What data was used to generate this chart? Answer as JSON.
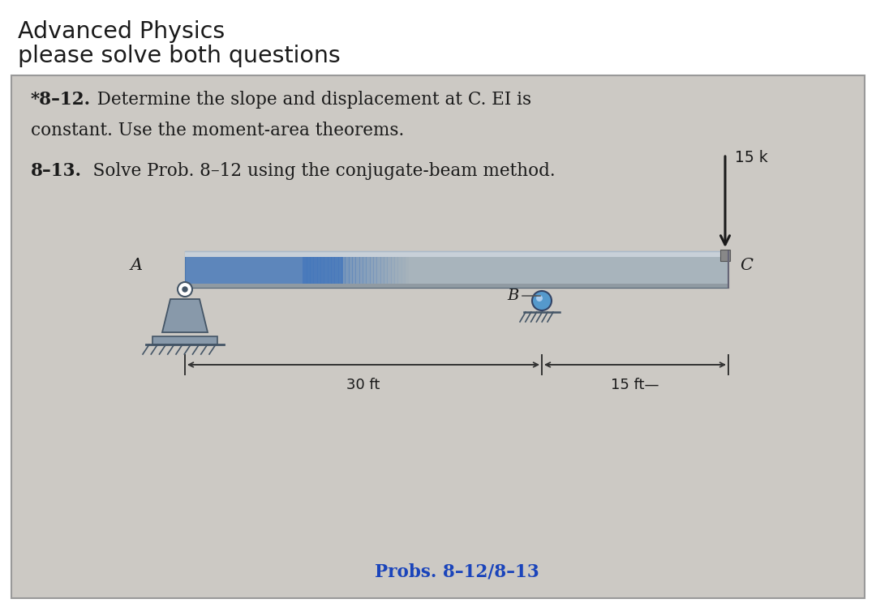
{
  "title_line1": "Advanced Physics",
  "title_line2": "please solve both questions",
  "prob_812_bold": "*8–12.",
  "prob_812_rest1": "  Determine the slope and displacement at C. EI is",
  "prob_812_rest2": "constant. Use the moment-area theorems.",
  "prob_813_bold": "8–13.",
  "prob_813_rest": "   Solve Prob. 8–12 using the conjugate-beam method.",
  "load_label": "15 k",
  "label_A": "A",
  "label_B": "B",
  "label_C": "C",
  "dim_30ft": "30 ft",
  "dim_15ft": "15 ft—",
  "prob_caption": "Probs. 8–12/8–13",
  "bg_color": "#ffffff",
  "box_bg": "#ccc9c4",
  "text_color": "#1a1a1a",
  "caption_color": "#1a44bb",
  "arrow_color": "#1a1a1a",
  "beam_main": "#a8b4bc",
  "beam_top_stripe": "#c8d0d8",
  "beam_bot_stripe": "#909aa2",
  "blue_left": "#4477bb",
  "support_color": "#8899aa",
  "roller_color": "#4488bb"
}
